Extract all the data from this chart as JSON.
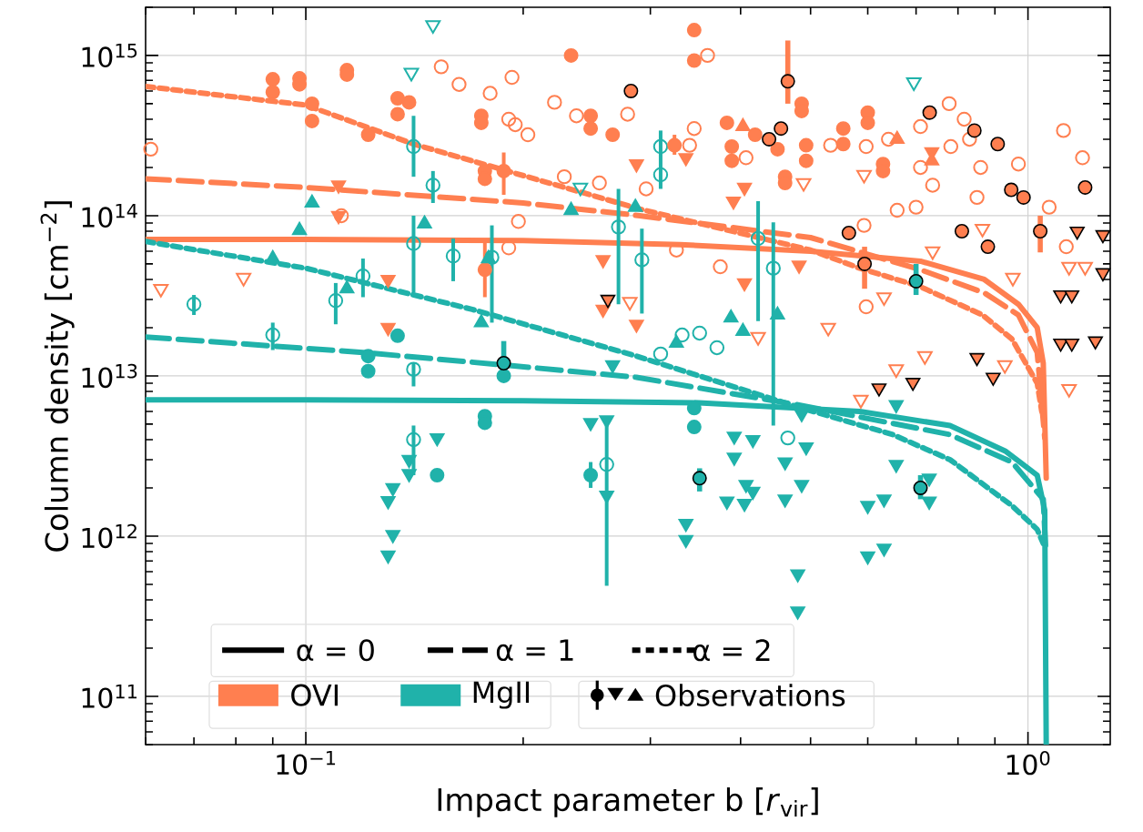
{
  "chart_data": {
    "type": "scatter",
    "xlabel": "Impact parameter b [*r*$_{vir}$]",
    "ylabel": "Column density [cm$^{−2}$]",
    "log": "xy",
    "grid": true,
    "xlim": [
      0.06,
      1.3
    ],
    "ylim": [
      50000000000.0,
      2000000000000000.0
    ],
    "xticks": [
      {
        "value": 0.1,
        "label": "10$^{−1}$"
      },
      {
        "value": 1,
        "label": "10$^{0}$"
      }
    ],
    "yticks": [
      {
        "value": 100000000000.0,
        "label": "10$^{11}$"
      },
      {
        "value": 1000000000000.0,
        "label": "10$^{12}$"
      },
      {
        "value": 10000000000000.0,
        "label": "10$^{13}$"
      },
      {
        "value": 100000000000000.0,
        "label": "10$^{14}$"
      },
      {
        "value": 1000000000000000.0,
        "label": "10$^{15}$"
      }
    ],
    "annotations": [
      "α = 0",
      "α = 1",
      "α = 2",
      "OVI",
      "MgII",
      "Observations"
    ],
    "series": [
      {
        "type": "line",
        "color": "#ff7f50",
        "line_style": "solid",
        "marker": "none",
        "x": [
          0.06,
          0.1,
          0.2,
          0.33,
          0.5,
          0.71,
          0.87,
          0.97,
          1.03,
          1.05,
          1.06
        ],
        "values": [
          71000000000000.0,
          71000000000000.0,
          70000000000000.0,
          66000000000000.0,
          60000000000000.0,
          52000000000000.0,
          40000000000000.0,
          28000000000000.0,
          20000000000000.0,
          12000000000000.0,
          2300000000000.0
        ]
      },
      {
        "type": "line",
        "color": "#ff7f50",
        "line_style": "dashed",
        "marker": "none",
        "x": [
          0.06,
          0.1,
          0.2,
          0.29,
          0.5,
          0.71,
          0.87,
          0.97,
          1.03,
          1.055
        ],
        "values": [
          170000000000000.0,
          150000000000000.0,
          120000000000000.0,
          100000000000000.0,
          73000000000000.0,
          46000000000000.0,
          33000000000000.0,
          24000000000000.0,
          14000000000000.0,
          4100000000000.0
        ]
      },
      {
        "type": "line",
        "color": "#ff7f50",
        "line_style": "dotted",
        "marker": "none",
        "x": [
          0.06,
          0.1,
          0.141,
          0.29,
          0.5,
          0.585,
          0.71,
          0.865,
          0.95,
          1.03,
          1.045
        ],
        "values": [
          640000000000000.0,
          490000000000000.0,
          280000000000000.0,
          110000000000000.0,
          61000000000000.0,
          47000000000000.0,
          36000000000000.0,
          24000000000000.0,
          17000000000000.0,
          9000000000000.0,
          6000000000000.0
        ]
      },
      {
        "type": "line",
        "color": "#20b2aa",
        "line_style": "solid",
        "marker": "none",
        "x": [
          0.06,
          0.1,
          0.2,
          0.35,
          0.585,
          0.78,
          0.93,
          1.03,
          1.055,
          1.06
        ],
        "values": [
          7100000000000.0,
          7100000000000.0,
          7000000000000.0,
          6800000000000.0,
          6000000000000.0,
          4900000000000.0,
          3400000000000.0,
          2400000000000.0,
          1450000000000.0,
          50000000000.0
        ]
      },
      {
        "type": "line",
        "color": "#20b2aa",
        "line_style": "dashed",
        "marker": "none",
        "x": [
          0.06,
          0.12,
          0.188,
          0.287,
          0.48,
          0.78,
          0.95,
          1.05,
          1.058
        ],
        "values": [
          17500000000000.0,
          14000000000000.0,
          11700000000000.0,
          9800000000000.0,
          6600000000000.0,
          4300000000000.0,
          2900000000000.0,
          1700000000000.0,
          850000000000.0
        ]
      },
      {
        "type": "line",
        "color": "#20b2aa",
        "line_style": "dotted",
        "marker": "none",
        "x": [
          0.06,
          0.1,
          0.17,
          0.287,
          0.48,
          0.65,
          0.78,
          0.95,
          1.03,
          1.05
        ],
        "values": [
          69000000000000.0,
          47000000000000.0,
          26000000000000.0,
          13300000000000.0,
          6400000000000.0,
          4300000000000.0,
          3000000000000.0,
          1550000000000.0,
          1100000000000.0,
          900000000000.0
        ]
      },
      {
        "color": "#ff7f50",
        "marker": "circle-open",
        "x": [
          0.061,
          0.154,
          0.163,
          0.193,
          0.18,
          0.191,
          0.195,
          0.203,
          0.221,
          0.237,
          0.279,
          0.228,
          0.255,
          0.197,
          0.191,
          0.112,
          0.36,
          0.345,
          0.34,
          0.296,
          0.407,
          0.533,
          0.597,
          0.641,
          0.71,
          0.778,
          0.816,
          0.83,
          0.71,
          0.738,
          0.659,
          0.7,
          0.782,
          0.86,
          0.97,
          0.85,
          1.07,
          1.12,
          1.19,
          0.593,
          0.326,
          0.375,
          0.597,
          1.13
        ],
        "values": [
          260000000000000.0,
          850000000000000.0,
          660000000000000.0,
          730000000000000.0,
          580000000000000.0,
          400000000000000.0,
          370000000000000.0,
          320000000000000.0,
          510000000000000.0,
          420000000000000.0,
          430000000000000.0,
          175000000000000.0,
          160000000000000.0,
          92000000000000.0,
          63000000000000.0,
          100000000000000.0,
          1000000000000000.0,
          350000000000000.0,
          275000000000000.0,
          147000000000000.0,
          230000000000000.0,
          275000000000000.0,
          270000000000000.0,
          300000000000000.0,
          360000000000000.0,
          500000000000000.0,
          400000000000000.0,
          300000000000000.0,
          200000000000000.0,
          155000000000000.0,
          108000000000000.0,
          113000000000000.0,
          270000000000000.0,
          200000000000000.0,
          210000000000000.0,
          130000000000000.0,
          113000000000000.0,
          340000000000000.0,
          230000000000000.0,
          87000000000000.0,
          61000000000000.0,
          48000000000000.0,
          27000000000000.0,
          64000000000000.0
        ]
      },
      {
        "color": "#ff7f50",
        "marker": "triangle-down-open",
        "x": [
          0.063,
          0.082,
          0.281,
          0.489,
          0.593,
          0.738,
          0.865,
          0.953,
          0.632,
          0.529,
          1.14,
          1.2,
          0.587,
          0.657,
          0.72,
          0.929,
          1.14,
          0.423
        ],
        "values": [
          35000000000000.0,
          41000000000000.0,
          29000000000000.0,
          160000000000000.0,
          180000000000000.0,
          60000000000000.0,
          83000000000000.0,
          41000000000000.0,
          31000000000000.0,
          20000000000000.0,
          48000000000000.0,
          48000000000000.0,
          7100000000000.0,
          11000000000000.0,
          13300000000000.0,
          11700000000000.0,
          8300000000000.0,
          17500000000000.0
        ]
      },
      {
        "color": "#20b2aa",
        "marker": "circle-open",
        "x": [
          0.07,
          0.09,
          0.11,
          0.12,
          0.141,
          0.141,
          0.15,
          0.16,
          0.181,
          0.271,
          0.141,
          0.141,
          0.261,
          0.31,
          0.31,
          0.292,
          0.423,
          0.444,
          0.332,
          0.351,
          0.371,
          0.31,
          0.465
        ],
        "values": [
          28000000000000.0,
          18000000000000.0,
          29500000000000.0,
          42000000000000.0,
          270000000000000.0,
          67000000000000.0,
          155000000000000.0,
          56000000000000.0,
          55000000000000.0,
          85000000000000.0,
          11000000000000.0,
          4000000000000.0,
          2800000000000.0,
          270000000000000.0,
          180000000000000.0,
          53000000000000.0,
          72000000000000.0,
          47000000000000.0,
          18000000000000.0,
          18500000000000.0,
          15000000000000.0,
          13700000000000.0,
          4100000000000.0
        ],
        "errors": [
          [
            24000000000000.0,
            32000000000000.0
          ],
          [
            14500000000000.0,
            21500000000000.0
          ],
          [
            21000000000000.0,
            38000000000000.0
          ],
          [
            31000000000000.0,
            54000000000000.0
          ],
          [
            175000000000000.0,
            420000000000000.0
          ],
          [
            33000000000000.0,
            100000000000000.0
          ],
          [
            120000000000000.0,
            190000000000000.0
          ],
          [
            39000000000000.0,
            72000000000000.0
          ],
          [
            21500000000000.0,
            87000000000000.0
          ],
          [
            28000000000000.0,
            147000000000000.0
          ],
          [
            8600000000000.0,
            12000000000000.0
          ],
          [
            2400000000000.0,
            4900000000000.0
          ],
          [
            490000000000.0,
            5300000000000.0
          ],
          [
            147000000000000.0,
            340000000000000.0
          ],
          null,
          [
            24500000000000.0,
            83000000000000.0
          ],
          [
            22000000000000.0,
            123000000000000.0
          ],
          [
            4900000000000.0,
            91000000000000.0
          ],
          null,
          null,
          null,
          null,
          null
        ]
      },
      {
        "color": "#20b2aa",
        "marker": "triangle-down-open",
        "x": [
          0.14,
          0.15,
          0.24,
          0.695
        ],
        "values": [
          780000000000000.0,
          1550000000000000.0,
          150000000000000.0,
          680000000000000.0
        ]
      },
      {
        "color": "#ff7f50",
        "marker": "circle",
        "x": [
          0.09,
          0.09,
          0.098,
          0.098,
          0.114,
          0.114,
          0.102,
          0.102,
          0.122,
          0.134,
          0.134,
          0.139,
          0.175,
          0.175,
          0.177,
          0.177,
          0.188,
          0.248,
          0.248,
          0.266,
          0.233,
          0.177,
          0.345,
          0.345,
          0.486,
          0.486,
          0.383,
          0.419,
          0.45,
          0.389,
          0.389,
          0.493,
          0.493,
          0.461,
          0.461,
          0.555,
          0.555,
          0.6,
          0.6,
          0.63,
          0.63,
          0.324
        ],
        "values": [
          710000000000000.0,
          590000000000000.0,
          720000000000000.0,
          660000000000000.0,
          810000000000000.0,
          760000000000000.0,
          500000000000000.0,
          390000000000000.0,
          320000000000000.0,
          540000000000000.0,
          430000000000000.0,
          510000000000000.0,
          420000000000000.0,
          380000000000000.0,
          190000000000000.0,
          170000000000000.0,
          190000000000000.0,
          420000000000000.0,
          350000000000000.0,
          320000000000000.0,
          1000000000000000.0,
          46000000000000.0,
          1440000000000000.0,
          930000000000000.0,
          500000000000000.0,
          450000000000000.0,
          380000000000000.0,
          320000000000000.0,
          260000000000000.0,
          270000000000000.0,
          220000000000000.0,
          275000000000000.0,
          220000000000000.0,
          175000000000000.0,
          160000000000000.0,
          350000000000000.0,
          280000000000000.0,
          440000000000000.0,
          380000000000000.0,
          210000000000000.0,
          190000000000000.0,
          275000000000000.0
        ],
        "errors": [
          null,
          null,
          null,
          null,
          null,
          null,
          null,
          null,
          null,
          null,
          null,
          null,
          null,
          null,
          null,
          null,
          [
            135000000000000.0,
            248000000000000.0
          ],
          null,
          null,
          null,
          null,
          [
            31000000000000.0,
            68000000000000.0
          ],
          null,
          null,
          null,
          null,
          null,
          null,
          null,
          null,
          null,
          null,
          null,
          null,
          null,
          null,
          null,
          null,
          null,
          null,
          null,
          [
            240000000000000.0,
            320000000000000.0
          ]
        ]
      },
      {
        "color": "#ff7f50",
        "marker": "triangle-down",
        "x": [
          0.111,
          0.111,
          0.13,
          0.13,
          0.258,
          0.258,
          0.287,
          0.336,
          0.391,
          0.405,
          0.482,
          0.405,
          0.287,
          0.736
        ],
        "values": [
          155000000000000.0,
          100000000000000.0,
          40000000000000.0,
          20000000000000.0,
          53000000000000.0,
          26000000000000.0,
          210000000000000.0,
          230000000000000.0,
          123000000000000.0,
          150000000000000.0,
          49000000000000.0,
          38000000000000.0,
          21000000000000.0,
          250000000000000.0
        ]
      },
      {
        "color": "#ff7f50",
        "marker": "triangle",
        "x": [
          0.403,
          0.659,
          0.736
        ],
        "values": [
          360000000000000.0,
          300000000000000.0,
          220000000000000.0
        ]
      },
      {
        "color": "#20b2aa",
        "marker": "triangle",
        "x": [
          0.09,
          0.098,
          0.102,
          0.146,
          0.179,
          0.114,
          0.175,
          0.233,
          0.286,
          0.388,
          0.403,
          0.45,
          0.326
        ],
        "values": [
          54000000000000.0,
          81000000000000.0,
          120000000000000.0,
          89000000000000.0,
          54000000000000.0,
          35000000000000.0,
          21500000000000.0,
          108000000000000.0,
          113000000000000.0,
          23000000000000.0,
          19000000000000.0,
          24000000000000.0,
          16000000000000.0
        ]
      },
      {
        "color": "#20b2aa",
        "marker": "circle",
        "x": [
          0.122,
          0.122,
          0.134,
          0.152,
          0.177,
          0.177,
          0.188,
          0.248,
          0.345,
          0.345
        ],
        "values": [
          13300000000000.0,
          10700000000000.0,
          17800000000000.0,
          2400000000000.0,
          5600000000000.0,
          5100000000000.0,
          10000000000000.0,
          2400000000000.0,
          6300000000000.0,
          4800000000000.0
        ],
        "errors": [
          null,
          null,
          null,
          null,
          null,
          null,
          null,
          [
            2000000000000.0,
            2900000000000.0
          ],
          null,
          null
        ]
      },
      {
        "color": "#20b2aa",
        "marker": "triangle-down",
        "x": [
          0.261,
          0.248,
          0.261,
          0.139,
          0.139,
          0.152,
          0.132,
          0.13,
          0.132,
          0.13,
          0.266,
          0.392,
          0.416,
          0.392,
          0.407,
          0.416,
          0.383,
          0.405,
          0.336,
          0.336,
          0.461,
          0.493,
          0.486,
          0.461,
          0.486,
          0.657,
          0.657,
          0.632,
          0.6,
          0.73,
          0.73,
          0.6,
          0.632,
          0.48,
          0.48
        ],
        "values": [
          5300000000000.0,
          5100000000000.0,
          1800000000000.0,
          3000000000000.0,
          2450000000000.0,
          4100000000000.0,
          2000000000000.0,
          1660000000000.0,
          1020000000000.0,
          760000000000.0,
          11700000000000.0,
          4200000000000.0,
          4000000000000.0,
          3100000000000.0,
          2100000000000.0,
          1900000000000.0,
          1650000000000.0,
          1600000000000.0,
          1200000000000.0,
          950000000000.0,
          2900000000000.0,
          3600000000000.0,
          2100000000000.0,
          1700000000000.0,
          5800000000000.0,
          6600000000000.0,
          2800000000000.0,
          1700000000000.0,
          1550000000000.0,
          2300000000000.0,
          1650000000000.0,
          750000000000.0,
          840000000000.0,
          580000000000.0,
          340000000000.0
        ]
      },
      {
        "color": "#ff7f50",
        "marker": "triangle-down-edge",
        "x": [
          0.85,
          0.622,
          0.693,
          0.895,
          1.11,
          1.15,
          1.24,
          1.11,
          1.15,
          1.27,
          1.17,
          1.27,
          0.262
        ],
        "values": [
          13000000000000.0,
          8400000000000.0,
          9100000000000.0,
          9800000000000.0,
          16000000000000.0,
          16000000000000.0,
          16500000000000.0,
          32000000000000.0,
          32000000000000.0,
          44000000000000.0,
          80000000000000.0,
          76000000000000.0,
          30000000000000.0
        ]
      },
      {
        "color": "#ff7f50",
        "marker": "circle-edge",
        "x": [
          0.282,
          0.465,
          0.438,
          0.455,
          0.731,
          0.843,
          0.908,
          0.948,
          0.986,
          0.88,
          0.81,
          1.04,
          1.2,
          0.565,
          0.594
        ],
        "values": [
          600000000000000.0,
          690000000000000.0,
          300000000000000.0,
          350000000000000.0,
          440000000000000.0,
          340000000000000.0,
          280000000000000.0,
          145000000000000.0,
          130000000000000.0,
          64000000000000.0,
          80000000000000.0,
          80000000000000.0,
          150000000000000.0,
          78000000000000.0,
          50000000000000.0
        ],
        "errors": [
          null,
          [
            500000000000000.0,
            1240000000000000.0
          ],
          null,
          null,
          null,
          null,
          null,
          null,
          null,
          null,
          null,
          [
            59000000000000.0,
            100000000000000.0
          ],
          null,
          null,
          [
            35000000000000.0,
            64000000000000.0
          ]
        ]
      },
      {
        "color": "#20b2aa",
        "marker": "circle-edge",
        "x": [
          0.188,
          0.351,
          0.71,
          0.7
        ],
        "values": [
          12000000000000.0,
          2300000000000.0,
          2000000000000.0,
          39000000000000.0
        ],
        "errors": [
          [
            10700000000000.0,
            16500000000000.0
          ],
          [
            1900000000000.0,
            2650000000000.0
          ],
          [
            1700000000000.0,
            2400000000000.0
          ],
          [
            32000000000000.0,
            50000000000000.0
          ]
        ]
      }
    ]
  }
}
